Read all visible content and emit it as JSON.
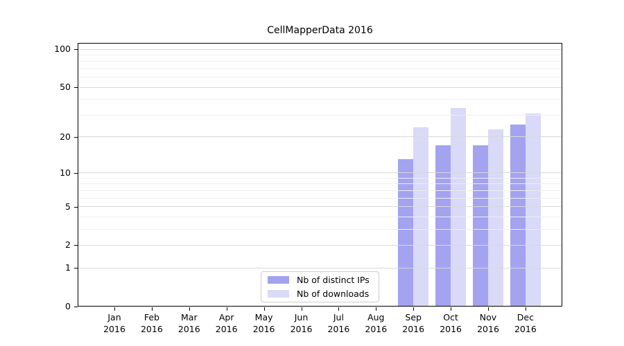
{
  "title": "CellMapperData 2016",
  "colors": {
    "ips": "#a3a3f0",
    "downloads": "#d9d9f8",
    "grid_major": "#d9d9d9",
    "grid_minor": "#efefef",
    "axis": "#000000",
    "legend_border": "#cccccc"
  },
  "legend": {
    "items": [
      {
        "label": "Nb of distinct IPs",
        "key": "ips"
      },
      {
        "label": "Nb of downloads",
        "key": "downloads"
      }
    ]
  },
  "y_axis": {
    "tick_labels": [
      100,
      50,
      20,
      10,
      5,
      2,
      1,
      0
    ],
    "minor_ticks": [
      3,
      4,
      6,
      7,
      8,
      9,
      30,
      40,
      60,
      70,
      80,
      90
    ]
  },
  "x_axis": {
    "months": [
      "Jan",
      "Feb",
      "Mar",
      "Apr",
      "May",
      "Jun",
      "Jul",
      "Aug",
      "Sep",
      "Oct",
      "Nov",
      "Dec"
    ],
    "year": "2016"
  },
  "chart_data": {
    "type": "bar",
    "title": "CellMapperData 2016",
    "categories": [
      "Jan 2016",
      "Feb 2016",
      "Mar 2016",
      "Apr 2016",
      "May 2016",
      "Jun 2016",
      "Jul 2016",
      "Aug 2016",
      "Sep 2016",
      "Oct 2016",
      "Nov 2016",
      "Dec 2016"
    ],
    "series": [
      {
        "name": "Nb of distinct IPs",
        "color": "#a3a3f0",
        "values": [
          null,
          null,
          null,
          null,
          null,
          null,
          null,
          null,
          13,
          17,
          17,
          25
        ]
      },
      {
        "name": "Nb of downloads",
        "color": "#d9d9f8",
        "values": [
          null,
          null,
          null,
          null,
          null,
          null,
          null,
          null,
          24,
          34,
          23,
          31
        ]
      }
    ],
    "xlabel": "",
    "ylabel": "",
    "ylim": [
      0,
      100
    ],
    "yscale": "log10(1+v)",
    "y_ticks": [
      0,
      1,
      2,
      5,
      10,
      20,
      50,
      100
    ],
    "grid": "horizontal major+minor, drawn above bars",
    "legend_position": "lower center"
  }
}
